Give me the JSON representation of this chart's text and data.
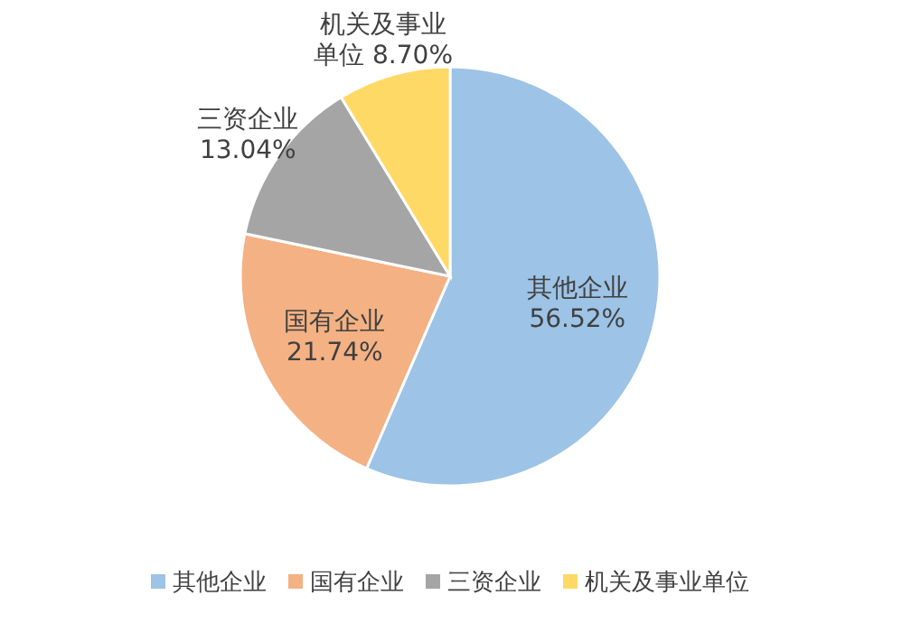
{
  "chart_data": {
    "type": "pie",
    "categories": [
      "其他企业",
      "国有企业",
      "三资企业",
      "机关及事业单位"
    ],
    "values": [
      56.52,
      21.74,
      13.04,
      8.7
    ],
    "value_labels": [
      "56.52%",
      "21.74%",
      "13.04%",
      "8.70%"
    ],
    "colors": [
      "#9dc3e6",
      "#f4b183",
      "#a5a5a5",
      "#ffd966"
    ],
    "legend": "bottom"
  }
}
